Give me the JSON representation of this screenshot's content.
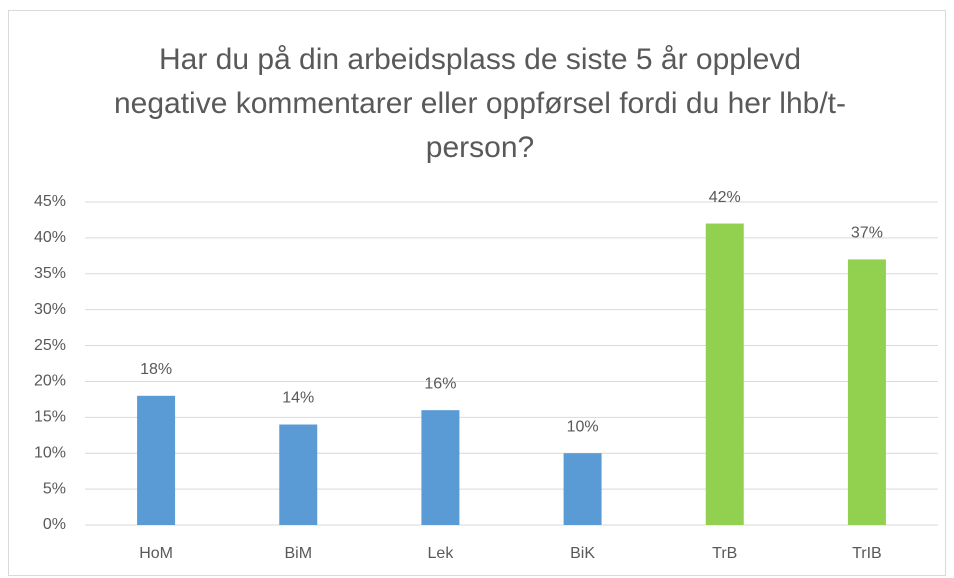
{
  "chart_data": {
    "type": "bar",
    "title": "Har du på din arbeidsplass de siste 5 år opplevd negative kommentarer eller oppførsel fordi du her lhb/t-person?",
    "categories": [
      "HoM",
      "BiM",
      "Lek",
      "BiK",
      "TrB",
      "TrIB"
    ],
    "values": [
      18,
      14,
      16,
      10,
      42,
      37
    ],
    "value_labels": [
      "18%",
      "14%",
      "16%",
      "10%",
      "42%",
      "37%"
    ],
    "colors": [
      "#5b9bd5",
      "#5b9bd5",
      "#5b9bd5",
      "#5b9bd5",
      "#92d050",
      "#92d050"
    ],
    "ylim": [
      0,
      45
    ],
    "yticks": [
      {
        "value": 0,
        "label": "0%"
      },
      {
        "value": 5,
        "label": "5%"
      },
      {
        "value": 10,
        "label": "10%"
      },
      {
        "value": 15,
        "label": "15%"
      },
      {
        "value": 20,
        "label": "20%"
      },
      {
        "value": 25,
        "label": "25%"
      },
      {
        "value": 30,
        "label": "30%"
      },
      {
        "value": 35,
        "label": "35%"
      },
      {
        "value": 40,
        "label": "40%"
      },
      {
        "value": 45,
        "label": "45%"
      }
    ],
    "grid": true
  }
}
